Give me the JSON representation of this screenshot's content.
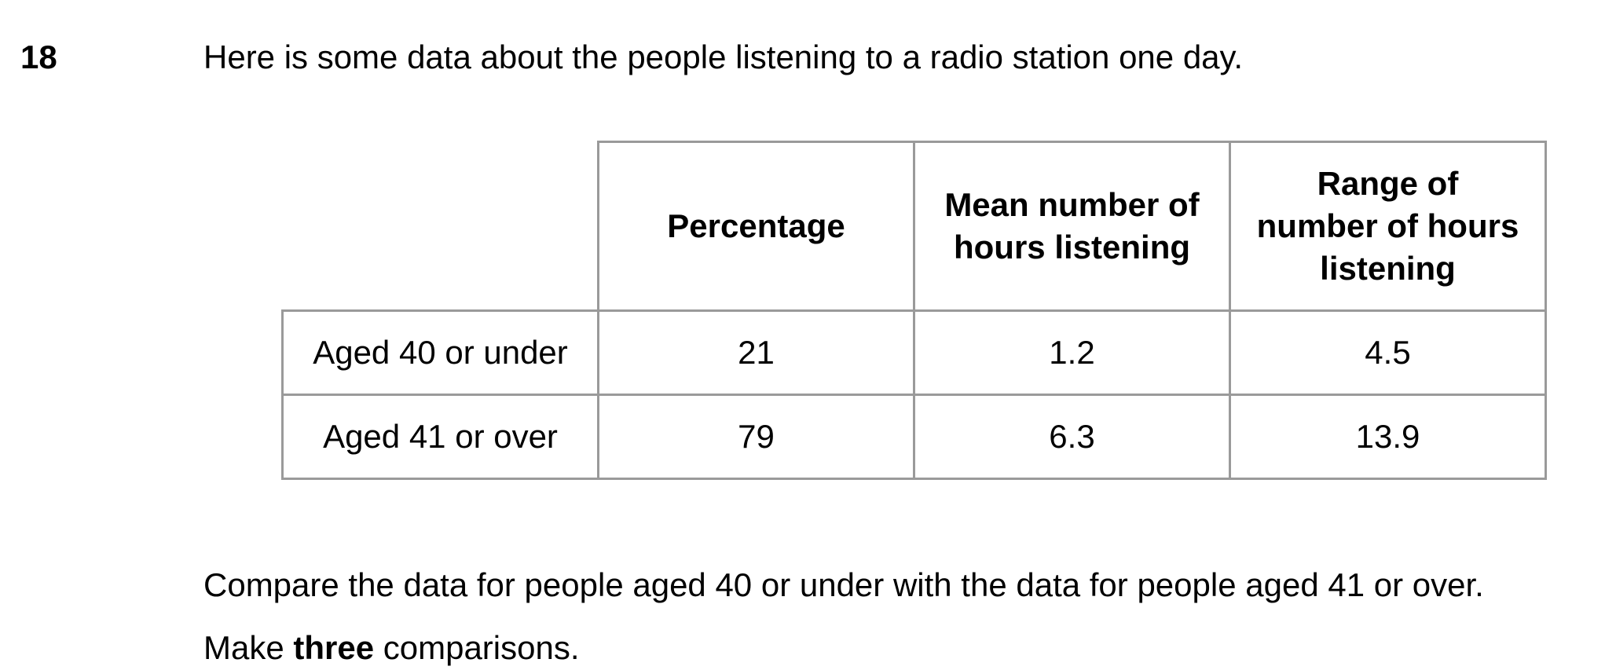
{
  "question": {
    "number": "18",
    "intro": "Here is some data about the people listening to a radio station one day."
  },
  "table": {
    "headers": [
      "",
      "Percentage",
      "Mean number of hours listening",
      "Range of number of hours listening"
    ],
    "rows": [
      {
        "label": "Aged 40 or under",
        "percentage": "21",
        "mean": "1.2",
        "range": "4.5"
      },
      {
        "label": "Aged 41 or over",
        "percentage": "79",
        "mean": "6.3",
        "range": "13.9"
      }
    ]
  },
  "instructions": {
    "compare": "Compare the data for people aged 40 or under with the data for people aged 41 or over.",
    "make_prefix": "Make ",
    "make_bold": "three",
    "make_suffix": " comparisons."
  }
}
